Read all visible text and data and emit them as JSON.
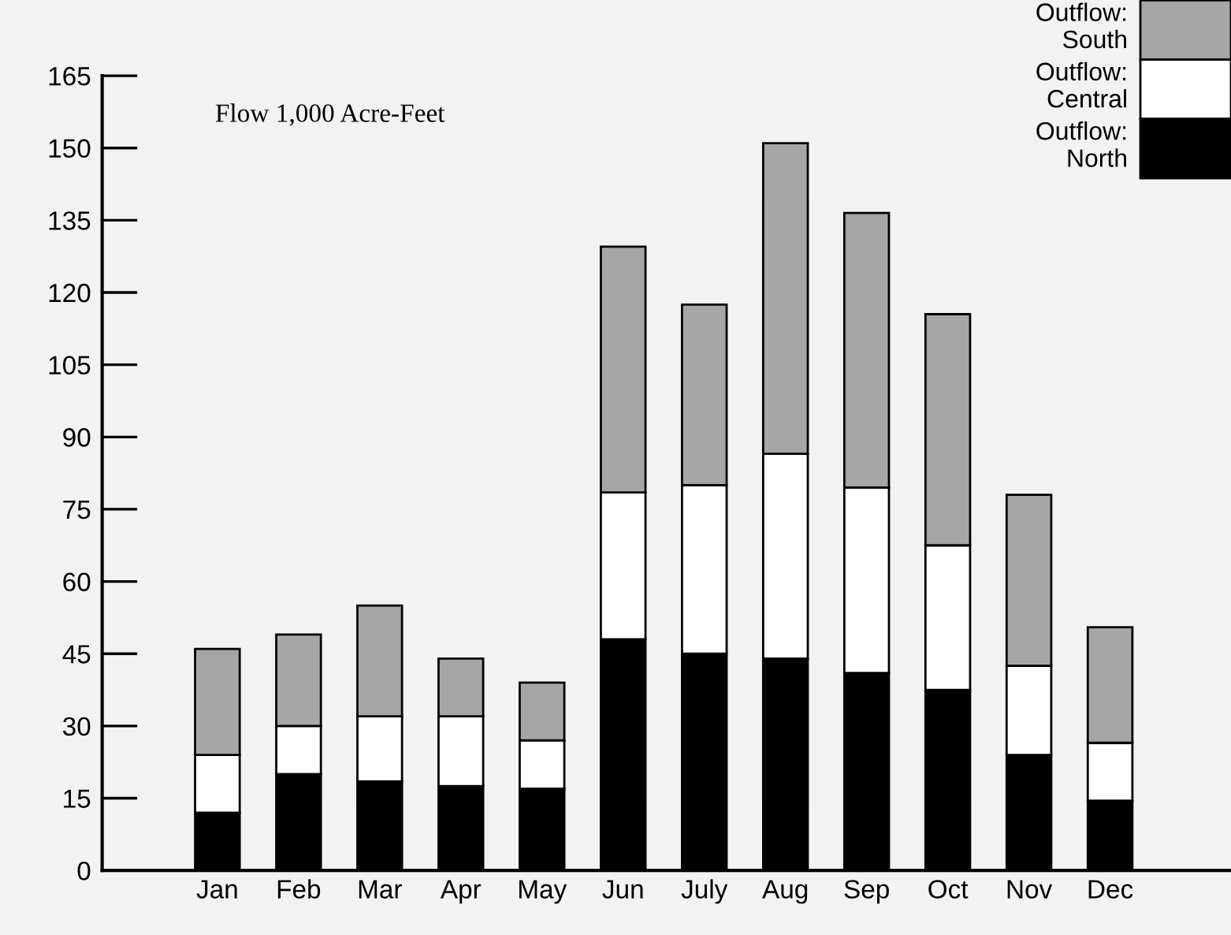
{
  "chart_data": {
    "type": "bar",
    "stacked": true,
    "ylabel": "Flow 1,000 Acre-Feet",
    "categories": [
      "Jan",
      "Feb",
      "Mar",
      "Apr",
      "May",
      "Jun",
      "July",
      "Aug",
      "Sep",
      "Oct",
      "Nov",
      "Dec"
    ],
    "series": [
      {
        "name": "Outflow:\nNorth",
        "color": "#000000",
        "values": [
          12,
          20,
          18.5,
          17.5,
          17,
          48,
          45,
          44,
          41,
          37.5,
          24,
          14.5
        ]
      },
      {
        "name": "Outflow:\nCentral",
        "color": "#ffffff",
        "values": [
          12,
          10,
          13.5,
          14.5,
          10,
          30.5,
          35,
          42.5,
          38.5,
          30,
          18.5,
          12
        ]
      },
      {
        "name": "Outflow:\nSouth",
        "color": "#a6a6a6",
        "values": [
          22,
          19,
          23,
          12,
          12,
          51,
          37.5,
          64.5,
          57,
          48,
          35.5,
          24
        ]
      }
    ],
    "ylim": [
      0,
      165
    ],
    "yticks": [
      0,
      15,
      30,
      45,
      60,
      75,
      90,
      105,
      120,
      135,
      150,
      165
    ],
    "grid": false,
    "legend": "top right"
  }
}
